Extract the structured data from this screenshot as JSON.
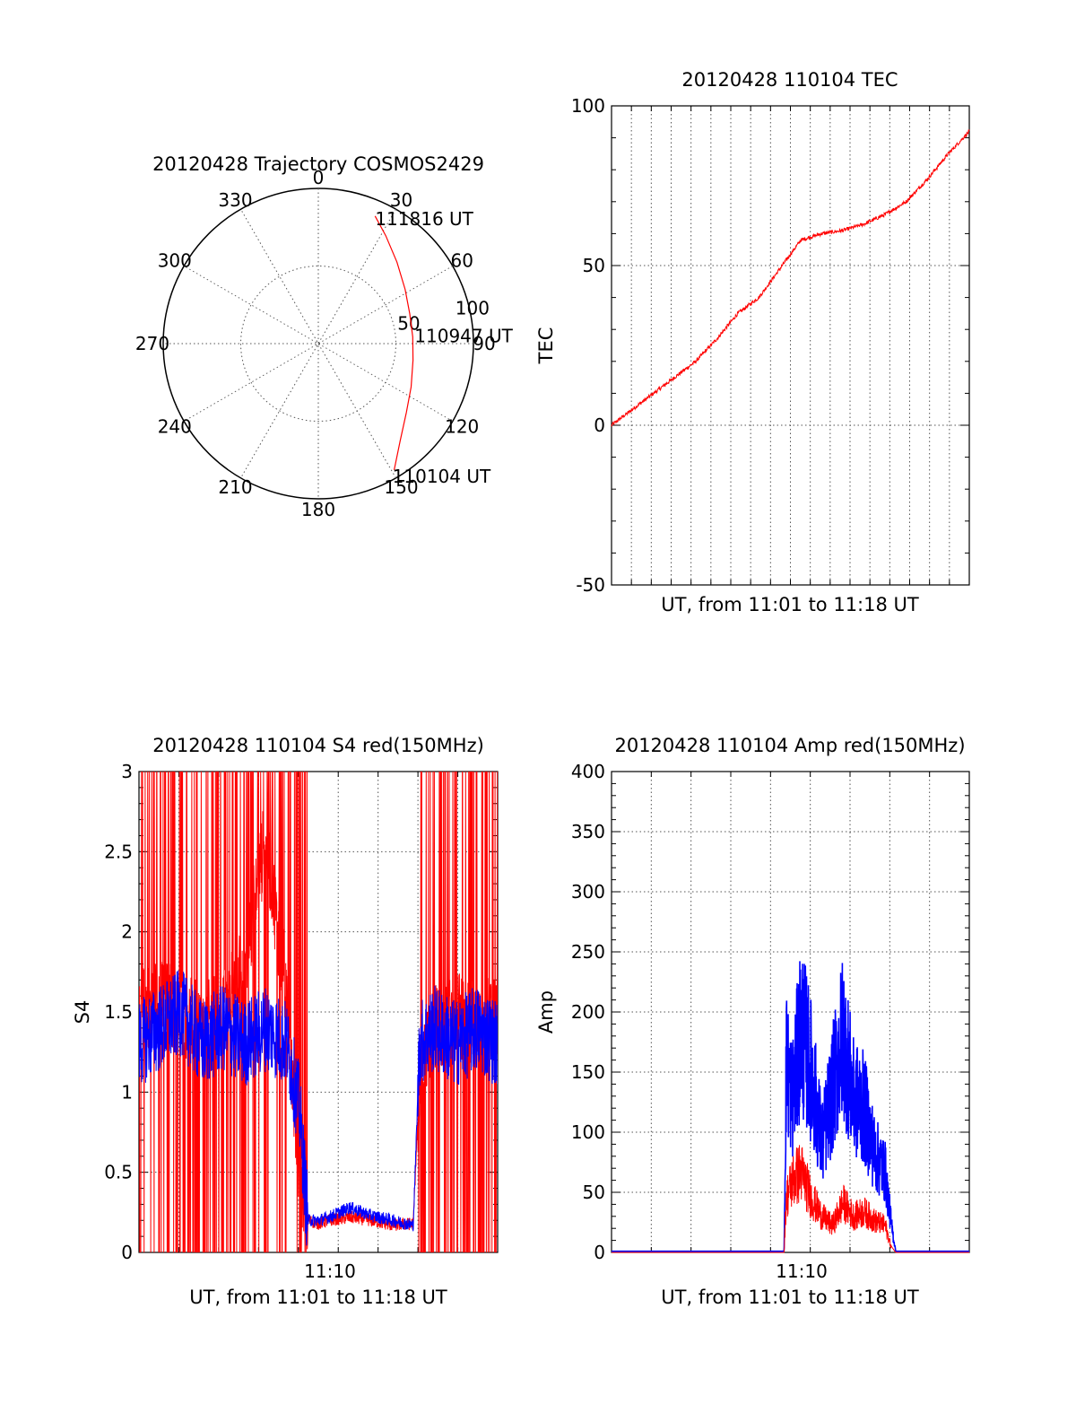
{
  "colors": {
    "red": "#ff0000",
    "blue": "#0000ff",
    "axis": "#000000"
  },
  "chart_data": [
    {
      "id": "trajectory",
      "type": "polar-trajectory",
      "title": "20120428 Trajectory COSMOS2429",
      "azimuth_labels": [
        "0",
        "30",
        "60",
        "90",
        "120",
        "150",
        "180",
        "210",
        "240",
        "270",
        "300",
        "330"
      ],
      "radial_rings": [
        50,
        100
      ],
      "ring_labels": [
        "50",
        "100"
      ],
      "start_label": "110104 UT",
      "mid_label": "110947 UT",
      "end_label": "111816 UT",
      "track": [
        {
          "az": 149,
          "zen": 95
        },
        {
          "az": 140,
          "zen": 82
        },
        {
          "az": 128,
          "zen": 72
        },
        {
          "az": 115,
          "zen": 66
        },
        {
          "az": 100,
          "zen": 62
        },
        {
          "az": 86,
          "zen": 61
        },
        {
          "az": 72,
          "zen": 62
        },
        {
          "az": 58,
          "zen": 66
        },
        {
          "az": 44,
          "zen": 73
        },
        {
          "az": 32,
          "zen": 82
        },
        {
          "az": 24,
          "zen": 90
        }
      ]
    },
    {
      "id": "tec",
      "type": "line",
      "title": "20120428 110104 TEC",
      "xlabel": "UT, from 11:01 to 11:18 UT",
      "ylabel": "TEC",
      "ylim": [
        -50,
        100
      ],
      "y_ticks": [
        "-50",
        "0",
        "50",
        "100"
      ],
      "series": [
        {
          "color": "red",
          "x_minutes": [
            0,
            1,
            2,
            3,
            4,
            5,
            6,
            7,
            8,
            9,
            10,
            11,
            12,
            13,
            14,
            15,
            16,
            17
          ],
          "values": [
            0,
            5,
            10,
            15,
            20,
            27,
            35,
            40,
            49,
            58,
            60,
            61,
            63,
            66,
            70,
            77,
            85,
            92
          ]
        }
      ]
    },
    {
      "id": "s4",
      "type": "line",
      "title": "20120428 110104 S4 red(150MHz)",
      "xlabel": "UT, from 11:01 to 11:18 UT",
      "ylabel": "S4",
      "ylim": [
        0,
        3
      ],
      "y_ticks": [
        "0",
        "0.5",
        "1",
        "1.5",
        "2",
        "2.5",
        "3"
      ],
      "x_tick_label": "11:10",
      "series": [
        {
          "color": "red",
          "x_minutes": [
            0,
            1,
            2,
            3,
            4,
            5,
            6,
            7,
            7.6,
            8,
            8.5,
            9,
            10,
            11,
            12,
            13,
            13.3,
            14,
            15,
            16,
            17
          ],
          "values": [
            1.5,
            1.6,
            1.5,
            1.4,
            1.5,
            1.8,
            2.6,
            1.6,
            0.5,
            0.2,
            0.18,
            0.2,
            0.22,
            0.2,
            0.17,
            0.18,
            1.1,
            1.4,
            1.5,
            1.4,
            1.5
          ]
        },
        {
          "color": "blue",
          "x_minutes": [
            0,
            1,
            2,
            3,
            4,
            5,
            6,
            7,
            7.6,
            8,
            8.5,
            9,
            10,
            11,
            12,
            13,
            13.3,
            14,
            15,
            16,
            17
          ],
          "values": [
            1.3,
            1.4,
            1.5,
            1.3,
            1.4,
            1.3,
            1.4,
            1.3,
            0.9,
            0.2,
            0.2,
            0.22,
            0.28,
            0.23,
            0.2,
            0.17,
            1.3,
            1.4,
            1.3,
            1.4,
            1.3
          ]
        }
      ]
    },
    {
      "id": "amp",
      "type": "line",
      "title": "20120428 110104 Amp red(150MHz)",
      "xlabel": "UT, from 11:01 to 11:18 UT",
      "ylabel": "Amp",
      "ylim": [
        0,
        400
      ],
      "y_ticks": [
        "0",
        "50",
        "100",
        "150",
        "200",
        "250",
        "300",
        "350",
        "400"
      ],
      "x_tick_label": "11:10",
      "series": [
        {
          "color": "red",
          "x_minutes": [
            0,
            8.2,
            8.3,
            8.6,
            9,
            9.5,
            10,
            10.5,
            11,
            11.5,
            12,
            12.5,
            13,
            13.3,
            13.5,
            17
          ],
          "values": [
            0,
            0,
            60,
            80,
            90,
            60,
            40,
            30,
            55,
            40,
            45,
            35,
            30,
            5,
            0,
            0
          ]
        },
        {
          "color": "blue",
          "x_minutes": [
            0,
            8.2,
            8.3,
            8.6,
            9,
            9.5,
            10,
            10.5,
            11,
            11.5,
            12,
            12.5,
            13,
            13.3,
            13.5,
            17
          ],
          "values": [
            1,
            1,
            210,
            170,
            250,
            200,
            120,
            180,
            240,
            170,
            160,
            110,
            90,
            30,
            1,
            1
          ]
        }
      ]
    }
  ]
}
